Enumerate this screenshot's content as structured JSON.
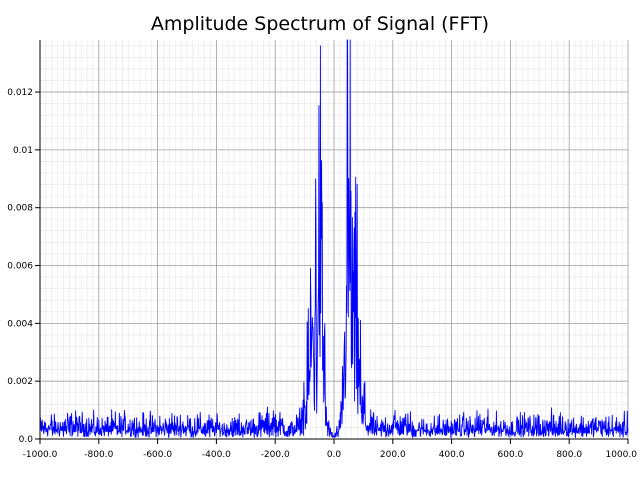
{
  "chart_data": {
    "type": "line",
    "title": "Amplitude Spectrum of Signal (FFT)",
    "xlabel": "",
    "ylabel": "",
    "xlim": [
      -1000,
      1000
    ],
    "ylim": [
      0,
      0.0138
    ],
    "grid": {
      "major": true,
      "minor": true
    },
    "x_ticks": [
      -1000,
      -800,
      -600,
      -400,
      -200,
      0,
      200,
      400,
      600,
      800,
      1000
    ],
    "x_tick_labels": [
      "-1000.0",
      "-800.0",
      "-600.0",
      "-400.0",
      "-200.0",
      "0.0",
      "200.0",
      "400.0",
      "600.0",
      "800.0",
      "1000.0"
    ],
    "y_ticks": [
      0,
      0.002,
      0.004,
      0.006,
      0.008,
      0.01,
      0.012
    ],
    "y_tick_labels": [
      "0.0",
      "0.002",
      "0.004",
      "0.006",
      "0.008",
      "0.01",
      "0.012"
    ],
    "series": [
      {
        "color": "#0000ff",
        "x": [
          -1000,
          -900,
          -800,
          -700,
          -600,
          -500,
          -400,
          -300,
          -200,
          -150,
          -120,
          -110,
          -100,
          -95,
          -90,
          -85,
          -80,
          -75,
          -70,
          -65,
          -60,
          -58,
          -55,
          -52,
          -50,
          -48,
          -45,
          -42,
          -40,
          -38,
          -35,
          -30,
          -25,
          -20,
          -15,
          -10,
          -5,
          0,
          5,
          10,
          15,
          20,
          25,
          30,
          35,
          38,
          40,
          42,
          45,
          48,
          50,
          52,
          55,
          58,
          60,
          65,
          70,
          75,
          80,
          85,
          90,
          95,
          100,
          110,
          120,
          150,
          200,
          300,
          400,
          500,
          600,
          700,
          800,
          900,
          1000
        ],
        "y": [
          0.0006,
          0.0007,
          0.0006,
          0.0007,
          0.0006,
          0.0007,
          0.0006,
          0.0006,
          0.0008,
          0.0005,
          0.0007,
          0.0009,
          0.0022,
          0.0012,
          0.003,
          0.0038,
          0.0062,
          0.0072,
          0.0055,
          0.0068,
          0.0085,
          0.0066,
          0.0113,
          0.0095,
          0.0104,
          0.0088,
          0.0125,
          0.0092,
          0.0075,
          0.0062,
          0.0042,
          0.0035,
          0.0012,
          0.0006,
          0.0003,
          0.0004,
          0.0002,
          0.0001,
          0.0002,
          0.0004,
          0.0003,
          0.0006,
          0.0012,
          0.0035,
          0.0042,
          0.0062,
          0.0075,
          0.0092,
          0.0125,
          0.0088,
          0.0104,
          0.0095,
          0.0113,
          0.0066,
          0.0085,
          0.0068,
          0.0055,
          0.0072,
          0.0062,
          0.0038,
          0.003,
          0.0012,
          0.0022,
          0.0009,
          0.0007,
          0.0005,
          0.0008,
          0.0006,
          0.0006,
          0.0007,
          0.0006,
          0.0007,
          0.0006,
          0.0007,
          0.0006
        ]
      }
    ]
  }
}
